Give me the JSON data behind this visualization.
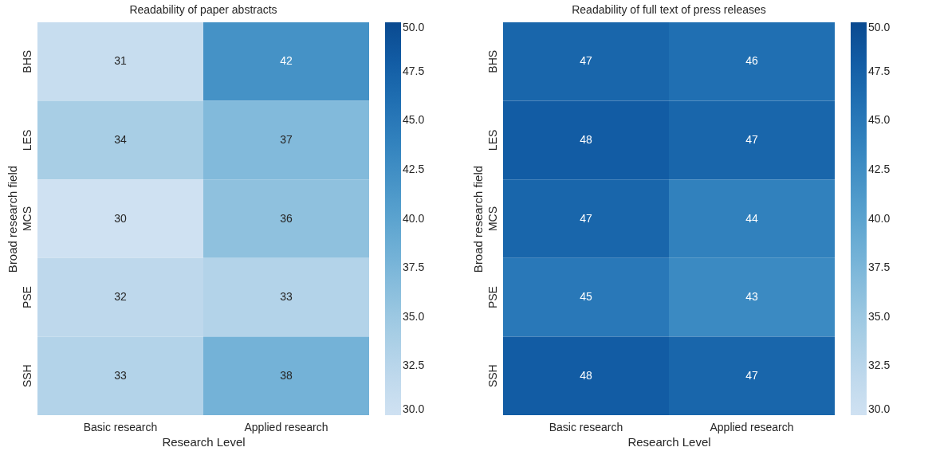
{
  "chart_data": [
    {
      "type": "heatmap",
      "title": "Readability of paper abstracts",
      "xlabel": "Research Level",
      "ylabel": "Broad research field",
      "categories": [
        "Basic research",
        "Applied research"
      ],
      "y_categories": [
        "BHS",
        "LES",
        "MCS",
        "PSE",
        "SSH"
      ],
      "cells": [
        [
          31,
          42
        ],
        [
          34,
          37
        ],
        [
          30,
          36
        ],
        [
          32,
          33
        ],
        [
          33,
          38
        ]
      ],
      "clim": [
        30,
        50
      ],
      "cticks": [
        {
          "value": 30,
          "label": "30.0"
        },
        {
          "value": 32.5,
          "label": "32.5"
        },
        {
          "value": 35,
          "label": "35.0"
        },
        {
          "value": 37.5,
          "label": "37.5"
        },
        {
          "value": 40,
          "label": "40.0"
        },
        {
          "value": 42.5,
          "label": "42.5"
        },
        {
          "value": 45,
          "label": "45.0"
        },
        {
          "value": 47.5,
          "label": "47.5"
        },
        {
          "value": 50,
          "label": "50.0"
        }
      ],
      "data_labels": true
    },
    {
      "type": "heatmap",
      "title": "Readability of full text of press releases",
      "xlabel": "Research Level",
      "ylabel": "Broad research field",
      "categories": [
        "Basic research",
        "Applied research"
      ],
      "y_categories": [
        "BHS",
        "LES",
        "MCS",
        "PSE",
        "SSH"
      ],
      "cells": [
        [
          47,
          46
        ],
        [
          48,
          47
        ],
        [
          47,
          44
        ],
        [
          45,
          43
        ],
        [
          48,
          47
        ]
      ],
      "clim": [
        30,
        50
      ],
      "cticks": [
        {
          "value": 30,
          "label": "30.0"
        },
        {
          "value": 32.5,
          "label": "32.5"
        },
        {
          "value": 35,
          "label": "35.0"
        },
        {
          "value": 37.5,
          "label": "37.5"
        },
        {
          "value": 40,
          "label": "40.0"
        },
        {
          "value": 42.5,
          "label": "42.5"
        },
        {
          "value": 45,
          "label": "45.0"
        },
        {
          "value": 47.5,
          "label": "47.5"
        },
        {
          "value": 50,
          "label": "50.0"
        }
      ],
      "data_labels": true
    }
  ]
}
